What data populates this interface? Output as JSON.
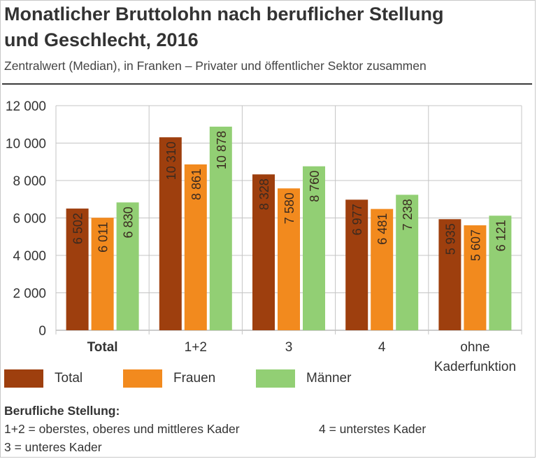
{
  "title_line1": "Monatlicher Bruttolohn nach beruflicher Stellung",
  "title_line2": "und Geschlecht, 2016",
  "subtitle": "Zentralwert (Median), in Franken – Privater und öffentlicher Sektor zusammen",
  "chart_data": {
    "type": "bar",
    "categories": [
      "Total",
      "1+2",
      "3",
      "4",
      "ohne Kaderfunktion"
    ],
    "category_label_lines": [
      [
        "Total"
      ],
      [
        "1+2"
      ],
      [
        "3"
      ],
      [
        "4"
      ],
      [
        "ohne",
        "Kaderfunktion"
      ]
    ],
    "bold_categories": [
      "Total"
    ],
    "series": [
      {
        "name": "Total",
        "values": [
          6502,
          10310,
          8328,
          6977,
          5935
        ],
        "labels": [
          "6 502",
          "10 310",
          "8 328",
          "6 977",
          "5 935"
        ],
        "color": "#9e3f0e"
      },
      {
        "name": "Frauen",
        "values": [
          6011,
          8861,
          7580,
          6481,
          5607
        ],
        "labels": [
          "6 011",
          "8 861",
          "7 580",
          "6 481",
          "5 607"
        ],
        "color": "#f28a1e"
      },
      {
        "name": "Männer",
        "values": [
          6830,
          10878,
          8760,
          7238,
          6121
        ],
        "labels": [
          "6 830",
          "10 878",
          "8 760",
          "7 238",
          "6 121"
        ],
        "color": "#92cf74"
      }
    ],
    "y_ticks": [
      0,
      2000,
      4000,
      6000,
      8000,
      10000,
      12000
    ],
    "y_tick_labels": [
      "0",
      "2 000",
      "4 000",
      "6 000",
      "8 000",
      "10 000",
      "12 000"
    ],
    "ylim": [
      0,
      12000
    ],
    "grid": true,
    "data_label_color": "#3a2a20",
    "legend_position": "bottom"
  },
  "legend": [
    {
      "label": "Total",
      "color": "#9e3f0e"
    },
    {
      "label": "Frauen",
      "color": "#f28a1e"
    },
    {
      "label": "Männer",
      "color": "#92cf74"
    }
  ],
  "notes": {
    "heading": "Berufliche Stellung:",
    "line1_left": "1+2 = oberstes, oberes und mittleres Kader",
    "line1_right": "4 = unterstes Kader",
    "line2_left": "3 = unteres Kader"
  }
}
